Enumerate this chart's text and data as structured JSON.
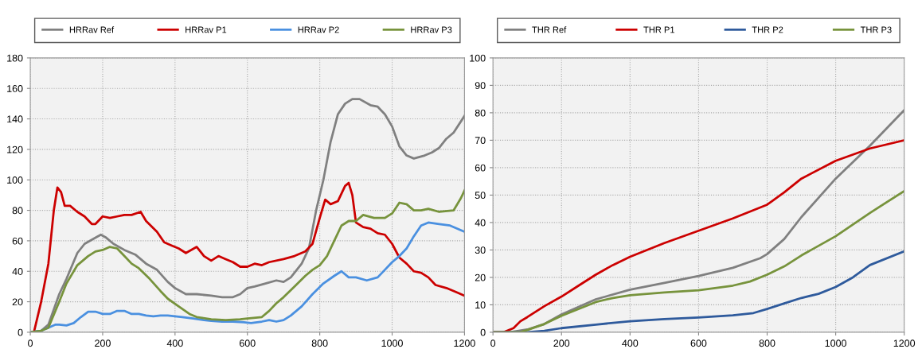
{
  "chart_data": [
    {
      "type": "line",
      "legend": "top",
      "grid": true,
      "line_style": "solid",
      "xlim": [
        0,
        1200
      ],
      "xticks": [
        0,
        200,
        400,
        600,
        800,
        1000,
        1200
      ],
      "ylim": [
        0,
        180
      ],
      "yticks": [
        0,
        20,
        40,
        60,
        80,
        100,
        120,
        140,
        160,
        180
      ],
      "series": [
        {
          "name": "HRRav Ref",
          "color": "#808080",
          "x": [
            0,
            30,
            50,
            80,
            100,
            130,
            150,
            180,
            195,
            210,
            230,
            260,
            290,
            320,
            350,
            380,
            400,
            430,
            460,
            500,
            530,
            560,
            580,
            600,
            620,
            650,
            680,
            700,
            720,
            750,
            770,
            790,
            810,
            830,
            850,
            870,
            890,
            910,
            940,
            960,
            980,
            1000,
            1020,
            1040,
            1060,
            1090,
            1110,
            1130,
            1150,
            1170,
            1200
          ],
          "values": [
            0,
            1,
            5,
            25,
            35,
            52,
            58,
            62,
            64,
            62,
            58,
            54,
            51,
            45,
            41,
            33,
            29,
            25,
            25,
            24,
            23,
            23,
            25,
            29,
            30,
            32,
            34,
            33,
            36,
            45,
            55,
            80,
            100,
            125,
            143,
            150,
            153,
            153,
            149,
            148,
            143,
            135,
            122,
            116,
            114,
            116,
            118,
            121,
            127,
            131,
            142
          ]
        },
        {
          "name": "HRRav P1",
          "color": "#cc0000",
          "x": [
            0,
            10,
            30,
            50,
            65,
            75,
            85,
            95,
            110,
            130,
            150,
            170,
            180,
            200,
            220,
            240,
            260,
            280,
            305,
            320,
            350,
            370,
            390,
            410,
            430,
            460,
            480,
            500,
            520,
            540,
            560,
            580,
            600,
            620,
            640,
            660,
            700,
            730,
            760,
            780,
            800,
            815,
            830,
            850,
            870,
            880,
            890,
            900,
            920,
            940,
            960,
            980,
            1000,
            1020,
            1040,
            1060,
            1080,
            1100,
            1120,
            1150,
            1180,
            1200
          ],
          "values": [
            0,
            0,
            20,
            45,
            80,
            95,
            92,
            83,
            83,
            79,
            76,
            71,
            71,
            76,
            75,
            76,
            77,
            77,
            79,
            73,
            66,
            59,
            57,
            55,
            52,
            56,
            50,
            47,
            50,
            48,
            46,
            43,
            43,
            45,
            44,
            46,
            48,
            50,
            53,
            58,
            75,
            87,
            84,
            86,
            96,
            98,
            90,
            72,
            69,
            68,
            65,
            64,
            58,
            49,
            45,
            40,
            39,
            36,
            31,
            29,
            26,
            24
          ]
        },
        {
          "name": "HRRav P2",
          "color": "#4a90e0",
          "x": [
            0,
            30,
            50,
            70,
            80,
            100,
            120,
            140,
            160,
            180,
            200,
            220,
            240,
            260,
            280,
            300,
            320,
            340,
            360,
            380,
            400,
            420,
            450,
            480,
            500,
            530,
            560,
            590,
            610,
            640,
            660,
            680,
            700,
            720,
            750,
            780,
            810,
            840,
            860,
            880,
            900,
            930,
            960,
            980,
            1000,
            1020,
            1040,
            1060,
            1080,
            1100,
            1130,
            1160,
            1200
          ],
          "values": [
            0,
            1,
            3,
            5,
            5,
            4.5,
            6,
            10,
            13.5,
            13.5,
            12,
            12,
            14,
            14,
            12,
            12,
            11,
            10.5,
            11,
            11,
            10.5,
            10,
            9,
            8,
            7.5,
            7,
            7,
            6.5,
            6,
            7,
            8,
            7,
            8,
            11,
            17,
            25,
            32,
            37,
            40,
            36,
            36,
            34,
            36,
            41,
            46,
            50,
            55,
            63,
            70,
            72,
            71,
            70,
            66
          ]
        },
        {
          "name": "HRRav P3",
          "color": "#77933c",
          "x": [
            0,
            30,
            50,
            80,
            100,
            130,
            160,
            180,
            200,
            220,
            240,
            260,
            280,
            300,
            330,
            360,
            380,
            410,
            440,
            460,
            500,
            540,
            580,
            600,
            640,
            660,
            680,
            700,
            730,
            760,
            780,
            800,
            820,
            840,
            860,
            880,
            900,
            920,
            950,
            980,
            1000,
            1020,
            1040,
            1060,
            1080,
            1100,
            1130,
            1170,
            1190,
            1200
          ],
          "values": [
            0,
            1,
            3,
            20,
            32,
            44,
            50,
            53,
            54,
            56,
            55,
            50,
            45,
            42,
            35,
            27,
            22,
            17,
            12,
            10,
            8.5,
            8,
            8.5,
            9,
            10,
            14,
            19,
            23,
            30,
            37,
            41,
            44,
            50,
            60,
            70,
            73,
            73,
            77,
            75,
            75,
            78,
            85,
            84,
            80,
            80,
            81,
            79,
            80,
            88,
            93
          ]
        }
      ]
    },
    {
      "type": "line",
      "legend": "top",
      "grid": true,
      "line_style": "solid",
      "xlim": [
        0,
        1200
      ],
      "xticks": [
        0,
        200,
        400,
        600,
        800,
        1000,
        1200
      ],
      "ylim": [
        0,
        100
      ],
      "yticks": [
        0,
        10,
        20,
        30,
        40,
        50,
        60,
        70,
        80,
        90,
        100
      ],
      "series": [
        {
          "name": "THR Ref",
          "color": "#808080",
          "x": [
            0,
            50,
            100,
            150,
            200,
            300,
            400,
            500,
            600,
            700,
            780,
            800,
            850,
            900,
            1000,
            1100,
            1200
          ],
          "values": [
            0,
            0,
            1,
            3,
            6.5,
            12,
            15.5,
            18,
            20.5,
            23.5,
            27,
            28.5,
            34,
            42,
            56,
            68,
            81
          ]
        },
        {
          "name": "THR P1",
          "color": "#cc0000",
          "x": [
            0,
            30,
            60,
            80,
            100,
            150,
            200,
            250,
            300,
            350,
            400,
            500,
            600,
            700,
            800,
            850,
            900,
            1000,
            1100,
            1200
          ],
          "values": [
            0,
            0,
            1.5,
            4,
            5.5,
            9.5,
            13,
            17,
            21,
            24.5,
            27.5,
            32.5,
            37,
            41.5,
            46.5,
            51,
            56,
            62.5,
            67,
            70
          ]
        },
        {
          "name": "THR P2",
          "color": "#2e5a9c",
          "x": [
            0,
            100,
            150,
            200,
            300,
            400,
            500,
            600,
            700,
            760,
            800,
            850,
            900,
            950,
            1000,
            1050,
            1100,
            1200
          ],
          "values": [
            0,
            0,
            0.5,
            1.5,
            2.8,
            4,
            4.8,
            5.4,
            6.2,
            7,
            8.5,
            10.5,
            12.5,
            14,
            16.5,
            20,
            24.5,
            29.5
          ]
        },
        {
          "name": "THR P3",
          "color": "#77933c",
          "x": [
            0,
            80,
            100,
            150,
            200,
            300,
            350,
            400,
            500,
            600,
            700,
            750,
            800,
            850,
            900,
            1000,
            1100,
            1200
          ],
          "values": [
            0,
            0,
            0.8,
            3,
            6,
            11,
            12.5,
            13.5,
            14.5,
            15.3,
            17,
            18.5,
            21,
            24,
            28,
            35,
            43.5,
            51.5
          ]
        }
      ]
    }
  ]
}
